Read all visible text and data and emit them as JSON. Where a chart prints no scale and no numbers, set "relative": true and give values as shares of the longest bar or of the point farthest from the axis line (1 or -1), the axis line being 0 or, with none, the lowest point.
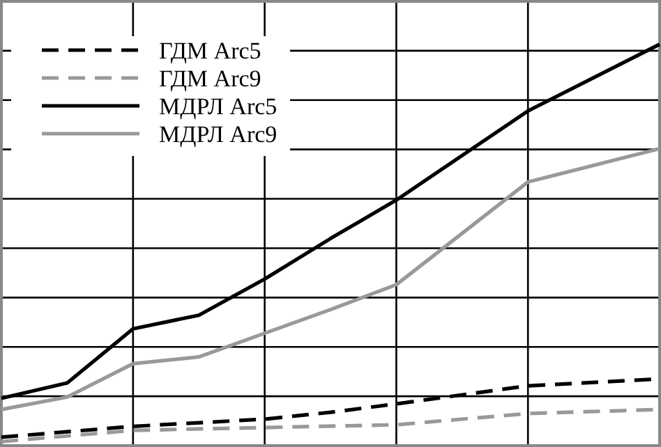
{
  "chart_data": {
    "type": "line",
    "relative": true,
    "categories": [
      null,
      null,
      null,
      null,
      null,
      null,
      null,
      null,
      null,
      null,
      null
    ],
    "grid": true,
    "legend": "top left",
    "series": [
      {
        "name": "ГДМ Arc5",
        "color": "#000000",
        "line_style": "dashed",
        "values": [
          0.021,
          null,
          0.048,
          null,
          0.066,
          0.083,
          0.104,
          null,
          0.149,
          null,
          0.166
        ]
      },
      {
        "name": "ГДМ Arc9",
        "color": "#999999",
        "line_style": "dashed",
        "values": [
          0.01,
          null,
          0.038,
          null,
          0.045,
          null,
          0.052,
          null,
          0.08,
          null,
          0.09
        ]
      },
      {
        "name": "МДРЛ Arc5",
        "color": "#000000",
        "line_style": "solid",
        "values": [
          0.118,
          0.156,
          0.291,
          0.325,
          0.415,
          0.516,
          0.612,
          null,
          0.834,
          null,
          1
        ]
      },
      {
        "name": "МДРЛ Arc9",
        "color": "#999999",
        "line_style": "solid",
        "values": [
          0.09,
          0.121,
          0.204,
          0.221,
          0.28,
          0.339,
          0.401,
          null,
          0.657,
          null,
          0.74
        ]
      }
    ]
  }
}
